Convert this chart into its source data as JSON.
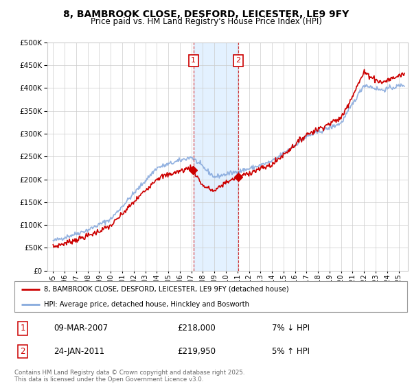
{
  "title": "8, BAMBROOK CLOSE, DESFORD, LEICESTER, LE9 9FY",
  "subtitle": "Price paid vs. HM Land Registry's House Price Index (HPI)",
  "yticks": [
    0,
    50000,
    100000,
    150000,
    200000,
    250000,
    300000,
    350000,
    400000,
    450000,
    500000
  ],
  "ylim": [
    0,
    500000
  ],
  "legend_line1": "8, BAMBROOK CLOSE, DESFORD, LEICESTER, LE9 9FY (detached house)",
  "legend_line2": "HPI: Average price, detached house, Hinckley and Bosworth",
  "transaction1_date": "09-MAR-2007",
  "transaction1_price": "£218,000",
  "transaction1_hpi": "7% ↓ HPI",
  "transaction2_date": "24-JAN-2011",
  "transaction2_price": "£219,950",
  "transaction2_hpi": "5% ↑ HPI",
  "footer": "Contains HM Land Registry data © Crown copyright and database right 2025.\nThis data is licensed under the Open Government Licence v3.0.",
  "line_color_red": "#cc0000",
  "line_color_blue": "#88aadd",
  "transaction1_x": 2007.18,
  "transaction2_x": 2011.07,
  "background_color": "#ffffff",
  "plot_bg_color": "#ffffff",
  "grid_color": "#cccccc",
  "shade_color": "#ddeeff",
  "hpi_seed": 42,
  "prop_seed": 7
}
